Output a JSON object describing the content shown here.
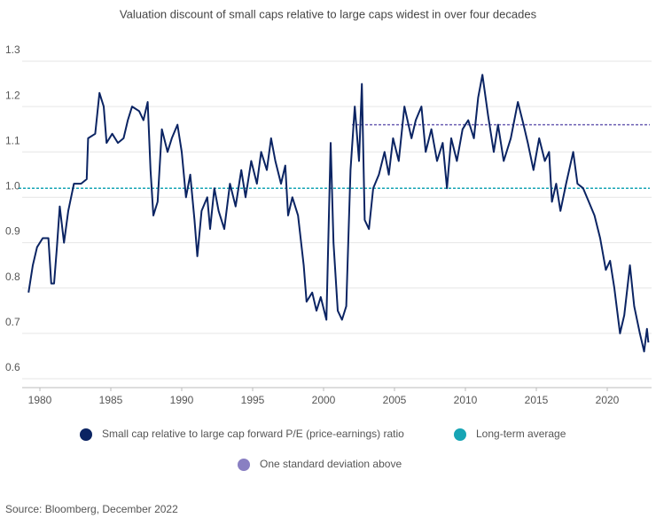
{
  "chart_data": {
    "type": "line",
    "title": "Valuation discount of small caps relative to large caps widest in over four decades",
    "source": "Source: Bloomberg, December 2022",
    "xlim": [
      1978.5,
      2023
    ],
    "xticks": [
      1980,
      1985,
      1990,
      1995,
      2000,
      2005,
      2010,
      2015,
      2020
    ],
    "ylim": [
      0.6,
      1.3
    ],
    "yticks": [
      0.6,
      0.7,
      0.8,
      0.9,
      {
        "value": 1,
        "label": "1.0"
      },
      1.1,
      1.2,
      1.3
    ],
    "grid": true,
    "x": [
      1979.2,
      1979.5,
      1979.8,
      1980.2,
      1980.6,
      1980.8,
      1981.0,
      1981.2,
      1981.4,
      1981.7,
      1982.0,
      1982.4,
      1982.9,
      1983.3,
      1983.4,
      1983.9,
      1984.2,
      1984.5,
      1984.7,
      1985.1,
      1985.5,
      1985.9,
      1986.2,
      1986.5,
      1987.0,
      1987.3,
      1987.6,
      1987.8,
      1988.0,
      1988.3,
      1988.6,
      1989.0,
      1989.3,
      1989.7,
      1990.0,
      1990.3,
      1990.6,
      1990.9,
      1991.1,
      1991.4,
      1991.8,
      1992.0,
      1992.3,
      1992.6,
      1993.0,
      1993.4,
      1993.8,
      1994.2,
      1994.5,
      1994.9,
      1995.3,
      1995.6,
      1996.0,
      1996.3,
      1996.6,
      1997.0,
      1997.3,
      1997.5,
      1997.8,
      1998.2,
      1998.6,
      1998.8,
      1999.2,
      1999.5,
      1999.8,
      2000.2,
      2000.5,
      2000.7,
      2001.0,
      2001.3,
      2001.6,
      2001.9,
      2002.2,
      2002.5,
      2002.7,
      2002.9,
      2003.2,
      2003.5,
      2003.9,
      2004.3,
      2004.6,
      2004.9,
      2005.3,
      2005.7,
      2006.2,
      2006.5,
      2006.9,
      2007.2,
      2007.6,
      2008.0,
      2008.4,
      2008.7,
      2009.0,
      2009.4,
      2009.8,
      2010.2,
      2010.6,
      2010.9,
      2011.2,
      2011.6,
      2012.0,
      2012.3,
      2012.7,
      2013.2,
      2013.7,
      2014.1,
      2014.4,
      2014.8,
      2015.2,
      2015.6,
      2015.9,
      2016.1,
      2016.4,
      2016.7,
      2017.1,
      2017.6,
      2017.9,
      2018.3,
      2018.7,
      2019.1,
      2019.5,
      2019.9,
      2020.2,
      2020.5,
      2020.9,
      2021.2,
      2021.6,
      2021.9,
      2022.3,
      2022.6,
      2022.8,
      2022.9
    ],
    "series": [
      {
        "name": "Small cap relative to large cap forward P/E (price-earnings) ratio",
        "color": "#0b2463",
        "values": [
          0.79,
          0.85,
          0.89,
          0.91,
          0.91,
          0.81,
          0.81,
          0.89,
          0.98,
          0.9,
          0.97,
          1.03,
          1.03,
          1.04,
          1.13,
          1.14,
          1.23,
          1.2,
          1.12,
          1.14,
          1.12,
          1.13,
          1.17,
          1.2,
          1.19,
          1.17,
          1.21,
          1.06,
          0.96,
          0.99,
          1.15,
          1.1,
          1.13,
          1.16,
          1.1,
          1.0,
          1.05,
          0.95,
          0.87,
          0.97,
          1.0,
          0.93,
          1.02,
          0.97,
          0.93,
          1.03,
          0.98,
          1.06,
          1.0,
          1.08,
          1.03,
          1.1,
          1.06,
          1.13,
          1.08,
          1.03,
          1.07,
          0.96,
          1.0,
          0.96,
          0.85,
          0.77,
          0.79,
          0.75,
          0.78,
          0.73,
          1.12,
          0.9,
          0.75,
          0.73,
          0.76,
          1.06,
          1.2,
          1.08,
          1.25,
          0.95,
          0.93,
          1.02,
          1.05,
          1.1,
          1.05,
          1.13,
          1.08,
          1.2,
          1.13,
          1.17,
          1.2,
          1.1,
          1.15,
          1.08,
          1.12,
          1.02,
          1.13,
          1.08,
          1.15,
          1.17,
          1.13,
          1.22,
          1.27,
          1.18,
          1.1,
          1.16,
          1.08,
          1.13,
          1.21,
          1.16,
          1.12,
          1.06,
          1.13,
          1.08,
          1.1,
          0.99,
          1.03,
          0.97,
          1.03,
          1.1,
          1.03,
          1.02,
          0.99,
          0.96,
          0.91,
          0.84,
          0.86,
          0.8,
          0.7,
          0.74,
          0.85,
          0.76,
          0.7,
          0.66,
          0.71,
          0.68
        ]
      }
    ],
    "reference_lines": [
      {
        "name": "Long-term average",
        "color": "#17a5b5",
        "value": 1.02
      },
      {
        "name": "One standard deviation above",
        "color": "#6b5fb3",
        "value": 1.16,
        "x_start": 2002
      }
    ]
  }
}
